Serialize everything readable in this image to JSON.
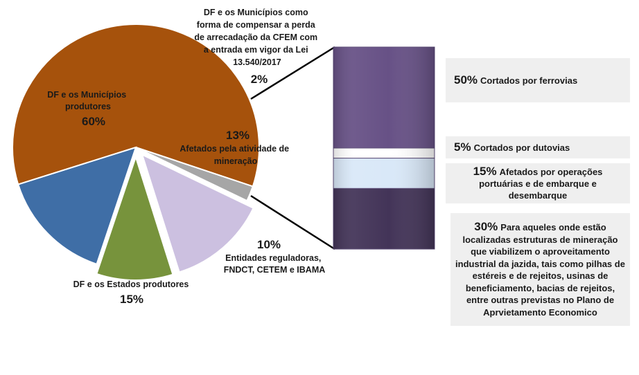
{
  "chart_data": [
    {
      "type": "pie",
      "slices": [
        {
          "label": "DF e os Municípios produtores",
          "value": 60,
          "value_label": "60%",
          "color": "#a6520c"
        },
        {
          "label": "DF e os Municípios como forma de compensar a perda de arrecadação da CFEM com a entrada em vigor da Lei 13.540/2017",
          "value": 2,
          "value_label": "2%",
          "color": "#a6a6a6"
        },
        {
          "label": "Afetados pela atividade de mineração",
          "value": 13,
          "value_label": "13%",
          "color": "#ccc0e0"
        },
        {
          "label": "Entidades reguladoras, FNDCT, CETEM e IBAMA",
          "value": 10,
          "value_label": "10%",
          "color": "#77933c"
        },
        {
          "label": "DF e os Estados produtores",
          "value": 15,
          "value_label": "15%",
          "color": "#3f6ea6"
        }
      ]
    },
    {
      "type": "bar",
      "stacked": true,
      "segments": [
        {
          "value": 50,
          "pct_label": "50%",
          "label": "Cortados por ferrovias",
          "color": "#675186"
        },
        {
          "value": 5,
          "pct_label": "5%",
          "label": "Cortados por dutovias",
          "color": "#ffffff"
        },
        {
          "value": 15,
          "pct_label": "15%",
          "label": "Afetados por operações portuárias e de embarque e desembarque",
          "color": "#d9e8f8"
        },
        {
          "value": 30,
          "pct_label": "30%",
          "label": "Para aqueles onde estão localizadas  estruturas de mineração que viabilizem o aproveitamento industrial da jazida, tais como pilhas de estéreis e de rejeitos, usinas  de beneficiamento, bacias de rejeitos, entre outras previstas no Plano de Aprvietamento Economico",
          "color": "#433458"
        }
      ]
    }
  ]
}
